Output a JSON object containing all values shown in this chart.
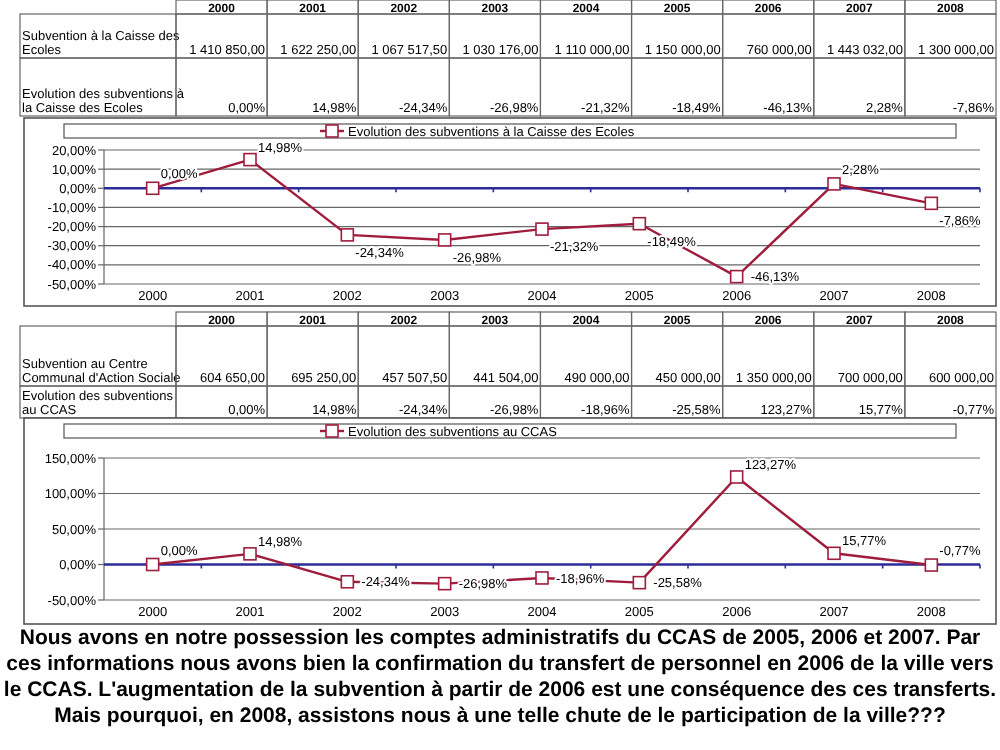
{
  "chart_data": [
    {
      "type": "line",
      "categories": [
        "2000",
        "2001",
        "2002",
        "2003",
        "2004",
        "2005",
        "2006",
        "2007",
        "2008"
      ],
      "series": [
        {
          "name": "Evolution des subventions à la Caisse des Ecoles",
          "color": "#a01c3c",
          "values": [
            0,
            14.98,
            -24.34,
            -26.98,
            -21.32,
            -18.49,
            -46.13,
            2.28,
            -7.86
          ],
          "value_labels": [
            "0,00%",
            "14,98%",
            "-24,34%",
            "-26,98%",
            "-21,32%",
            "-18,49%",
            "-46,13%",
            "2,28%",
            "-7,86%"
          ]
        }
      ],
      "ylim": [
        -50,
        20
      ],
      "yticks": [
        {
          "value": -50,
          "label": "-50,00%"
        },
        {
          "value": -40,
          "label": "-40,00%"
        },
        {
          "value": -30,
          "label": "-30,00%"
        },
        {
          "value": -20,
          "label": "-20,00%"
        },
        {
          "value": -10,
          "label": "-10,00%"
        },
        {
          "value": 0,
          "label": "0,00%"
        },
        {
          "value": 10,
          "label": "10,00%"
        },
        {
          "value": 20,
          "label": "20,00%"
        }
      ],
      "ref_lines": [
        {
          "axis": "y",
          "value": 0,
          "color": "#2b2b9a"
        }
      ],
      "grid": "y",
      "legend": "top",
      "marker": "square",
      "annotations": [
        "Subvention à la Caisse des Ecoles",
        "1 410 850,00",
        "1 622 250,00",
        "1 067 517,50",
        "1 030 176,00",
        "1 110 000,00",
        "1 150 000,00",
        "760 000,00",
        "1 443 032,00",
        "1 300 000,00"
      ]
    },
    {
      "type": "line",
      "categories": [
        "2000",
        "2001",
        "2002",
        "2003",
        "2004",
        "2005",
        "2006",
        "2007",
        "2008"
      ],
      "series": [
        {
          "name": "Evolution des subventions au CCAS",
          "color": "#a01c3c",
          "values": [
            0,
            14.98,
            -24.34,
            -26.98,
            -18.96,
            -25.58,
            123.27,
            15.77,
            -0.77
          ],
          "value_labels": [
            "0,00%",
            "14,98%",
            "-24,34%",
            "-26,98%",
            "-18,96%",
            "-25,58%",
            "123,27%",
            "15,77%",
            "-0,77%"
          ]
        }
      ],
      "ylim": [
        -50,
        150
      ],
      "yticks": [
        {
          "value": -50,
          "label": "-50,00%"
        },
        {
          "value": 0,
          "label": "0,00%"
        },
        {
          "value": 50,
          "label": "50,00%"
        },
        {
          "value": 100,
          "label": "100,00%"
        },
        {
          "value": 150,
          "label": "150,00%"
        }
      ],
      "ref_lines": [
        {
          "axis": "y",
          "value": 0,
          "color": "#2b2b9a"
        }
      ],
      "grid": "y",
      "legend": "top",
      "marker": "square",
      "annotations": [
        "Subvention au Centre Communal d'Action Sociale",
        "604 650,00",
        "695 250,00",
        "457 507,50",
        "441 504,00",
        "490 000,00",
        "450 000,00",
        "1 350 000,00",
        "700 000,00",
        "600 000,00",
        "Nous avons en notre possession les comptes administratifs du CCAS de 2005, 2006 et 2007. Par ces informations nous avons bien la confirmation du transfert  de personnel en 2006 de la ville vers le CCAS. L'augmentation de la subvention à partir de 2006 est une conséquence des ces transferts.",
        "Mais pourquoi, en 2008, assistons nous à une telle chute de le participation de la ville???"
      ]
    }
  ]
}
